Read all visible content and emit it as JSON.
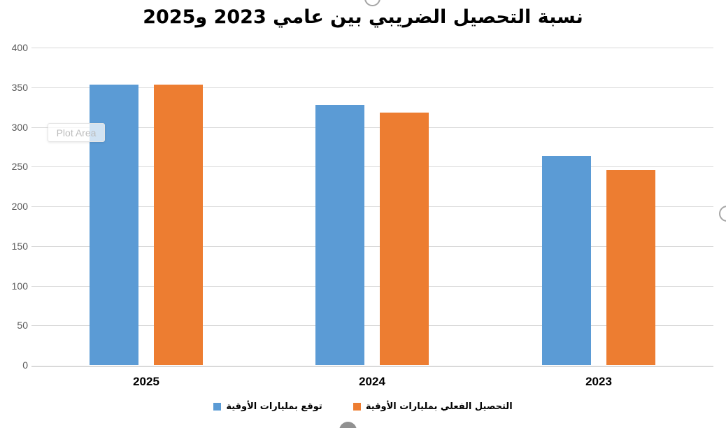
{
  "chart_data": {
    "type": "bar",
    "title": "نسبة التحصيل الضريبي بين عامي 2023 و2025",
    "categories": [
      "2025",
      "2024",
      "2023"
    ],
    "series": [
      {
        "name": "توقع بمليارات الأوقية",
        "color": "#5B9BD5",
        "values": [
          353,
          328,
          263
        ]
      },
      {
        "name": "التحصيل الفعلي بمليارات الأوقية",
        "color": "#ED7D31",
        "values": [
          353,
          318,
          246
        ]
      }
    ],
    "ylim": [
      0,
      400
    ],
    "yticks": [
      0,
      50,
      100,
      150,
      200,
      250,
      300,
      350,
      400
    ],
    "grid": true,
    "legend_position": "bottom",
    "direction": "rtl"
  },
  "overlay": {
    "plot_area_tooltip": "Plot Area"
  },
  "colors": {
    "series_forecast": "#5B9BD5",
    "series_actual": "#ED7D31",
    "gridline": "#D9D9D9",
    "axis_line": "#D9D9D9",
    "tick_label_text": "#595959",
    "title_text": "#000000",
    "selection_handle": "#A6A6A6",
    "tooltip_text": "#BDBDBD",
    "background": "#FFFFFF"
  }
}
